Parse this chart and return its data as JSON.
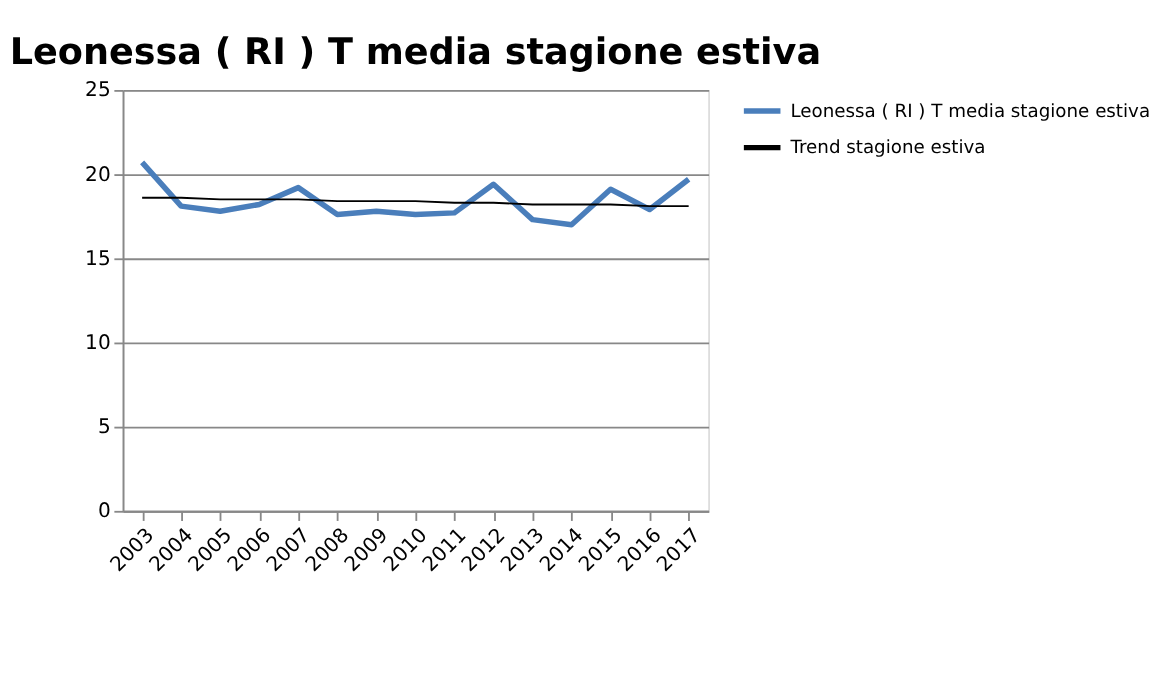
{
  "chart_data": {
    "type": "line",
    "title": "Leonessa ( RI ) T media stagione estiva",
    "categories": [
      "2003",
      "2004",
      "2005",
      "2006",
      "2007",
      "2008",
      "2009",
      "2010",
      "2011",
      "2012",
      "2013",
      "2014",
      "2015",
      "2016",
      "2017"
    ],
    "series": [
      {
        "name": "Leonessa ( RI ) T media stagione estiva",
        "color": "#4a7ebb",
        "values": [
          20.7,
          18.1,
          17.8,
          18.2,
          19.2,
          17.6,
          17.8,
          17.6,
          17.7,
          19.4,
          17.3,
          17.0,
          19.1,
          17.9,
          19.7
        ]
      },
      {
        "name": "Trend stagione estiva",
        "color": "#000000",
        "values": [
          18.6,
          18.6,
          18.5,
          18.5,
          18.5,
          18.4,
          18.4,
          18.4,
          18.3,
          18.3,
          18.2,
          18.2,
          18.2,
          18.1,
          18.1
        ]
      }
    ],
    "ylim": [
      0,
      25
    ],
    "yticks": [
      0,
      5,
      10,
      15,
      20,
      25
    ],
    "grid": "y",
    "legend": "right",
    "marker": "none",
    "line_style": "solid"
  }
}
